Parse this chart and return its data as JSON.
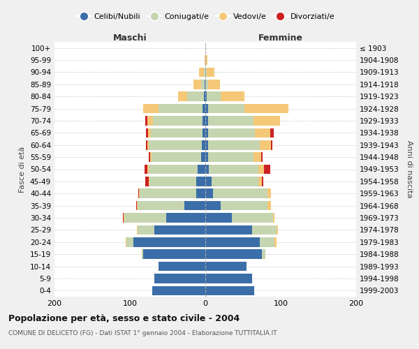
{
  "age_groups": [
    "0-4",
    "5-9",
    "10-14",
    "15-19",
    "20-24",
    "25-29",
    "30-34",
    "35-39",
    "40-44",
    "45-49",
    "50-54",
    "55-59",
    "60-64",
    "65-69",
    "70-74",
    "75-79",
    "80-84",
    "85-89",
    "90-94",
    "95-99",
    "100+"
  ],
  "birth_years": [
    "1999-2003",
    "1994-1998",
    "1989-1993",
    "1984-1988",
    "1979-1983",
    "1974-1978",
    "1969-1973",
    "1964-1968",
    "1959-1963",
    "1954-1958",
    "1949-1953",
    "1944-1948",
    "1939-1943",
    "1934-1938",
    "1929-1933",
    "1924-1928",
    "1919-1923",
    "1914-1918",
    "1909-1913",
    "1904-1908",
    "≤ 1903"
  ],
  "maschi": {
    "celibi": [
      70,
      68,
      62,
      82,
      95,
      68,
      52,
      28,
      12,
      12,
      10,
      6,
      5,
      4,
      4,
      4,
      2,
      1,
      0,
      0,
      0
    ],
    "coniugati": [
      0,
      0,
      0,
      2,
      10,
      22,
      55,
      62,
      75,
      62,
      65,
      65,
      70,
      68,
      65,
      58,
      22,
      5,
      2,
      0,
      0
    ],
    "vedovi": [
      0,
      0,
      0,
      0,
      1,
      1,
      1,
      1,
      1,
      1,
      2,
      2,
      2,
      4,
      8,
      20,
      12,
      10,
      6,
      1,
      0
    ],
    "divorziati": [
      0,
      0,
      0,
      0,
      0,
      0,
      1,
      1,
      1,
      5,
      4,
      2,
      2,
      3,
      3,
      0,
      0,
      0,
      0,
      0,
      0
    ]
  },
  "femmine": {
    "nubili": [
      65,
      62,
      55,
      75,
      72,
      62,
      35,
      20,
      10,
      8,
      5,
      4,
      4,
      4,
      4,
      4,
      2,
      0,
      0,
      0,
      0
    ],
    "coniugate": [
      0,
      0,
      0,
      5,
      20,
      32,
      55,
      62,
      72,
      62,
      65,
      60,
      68,
      62,
      60,
      48,
      18,
      4,
      2,
      0,
      0
    ],
    "vedove": [
      0,
      0,
      0,
      0,
      2,
      2,
      2,
      5,
      5,
      5,
      8,
      10,
      15,
      20,
      35,
      58,
      32,
      15,
      10,
      3,
      1
    ],
    "divorziate": [
      0,
      0,
      0,
      0,
      0,
      0,
      0,
      0,
      0,
      2,
      8,
      2,
      2,
      5,
      0,
      0,
      0,
      0,
      0,
      0,
      0
    ]
  },
  "colors": {
    "celibi": "#3B6EA8",
    "coniugati": "#C5D5B0",
    "vedovi": "#F5C878",
    "divorziati": "#CC2222"
  },
  "xlim": [
    -200,
    200
  ],
  "xticks": [
    -200,
    -100,
    0,
    100,
    200
  ],
  "xticklabels": [
    "200",
    "100",
    "0",
    "100",
    "200"
  ],
  "title": "Popolazione per età, sesso e stato civile - 2004",
  "subtitle": "COMUNE DI DELICETO (FG) - Dati ISTAT 1° gennaio 2004 - Elaborazione TUTTITALIA.IT",
  "ylabel_left": "Fasce di età",
  "ylabel_right": "Anni di nascita",
  "label_maschi": "Maschi",
  "label_femmine": "Femmine",
  "legend_labels": [
    "Celibi/Nubili",
    "Coniugati/e",
    "Vedovi/e",
    "Divorziati/e"
  ],
  "bg_color": "#f0f0f0",
  "plot_bg": "#ffffff"
}
